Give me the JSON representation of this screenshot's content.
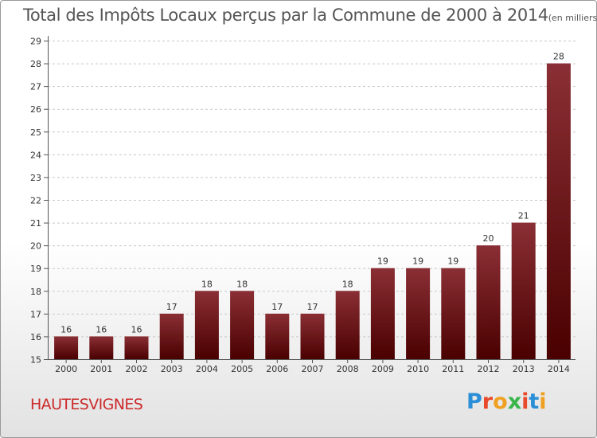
{
  "header": {
    "title": "Total des Impôts Locaux perçus par la Commune de 2000 à 2014",
    "unit": "(en milliers d'€)"
  },
  "footer": {
    "commune": "HAUTESVIGNES",
    "logo": "Proxiti"
  },
  "colors": {
    "bar_top": "#8a2f35",
    "bar_bottom": "#4a0000",
    "commune_text": "#cc2a2a",
    "logo_letters": [
      "#2a8fd6",
      "#e8492a",
      "#f0a020",
      "#39b54a",
      "#e8492a",
      "#2a8fd6",
      "#f0a020"
    ]
  },
  "chart_data": {
    "type": "bar",
    "title": "Total des Impôts Locaux perçus par la Commune de 2000 à 2014",
    "subtitle": "(en milliers d'€)",
    "xlabel": "",
    "ylabel": "",
    "categories": [
      "2000",
      "2001",
      "2002",
      "2003",
      "2004",
      "2005",
      "2006",
      "2007",
      "2008",
      "2009",
      "2010",
      "2011",
      "2012",
      "2013",
      "2014"
    ],
    "values": [
      16,
      16,
      16,
      17,
      18,
      18,
      17,
      17,
      18,
      19,
      19,
      19,
      20,
      21,
      28
    ],
    "ylim": [
      15,
      29
    ],
    "yticks": [
      "15",
      "16",
      "17",
      "18",
      "19",
      "20",
      "21",
      "22",
      "23",
      "24",
      "25",
      "26",
      "27",
      "28",
      "29"
    ],
    "grid": "horizontal-dashed",
    "legend": "none"
  }
}
